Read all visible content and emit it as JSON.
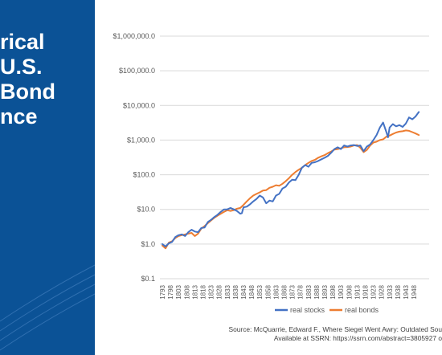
{
  "slide": {
    "title_lines": [
      "rical",
      "U.S.",
      "Bond",
      "nce"
    ],
    "source_line1": "Source: McQuarrie, Edward F., Where Siegel Went Awry: Outdated Sou",
    "source_line2": "Available at SSRN: https://ssrn.com/abstract=3805927 o"
  },
  "colors": {
    "panel": "#0b5296",
    "stocks": "#4472c4",
    "bonds": "#ed7d31",
    "grid": "#d9d9d9",
    "axis_text": "#595959"
  },
  "chart_data": {
    "type": "line",
    "title": "",
    "xlabel": "",
    "ylabel": "",
    "y_scale": "log",
    "ylim": [
      0.1,
      1000000
    ],
    "y_tick_values": [
      0.1,
      1,
      10,
      100,
      1000,
      10000,
      100000,
      1000000
    ],
    "y_tick_labels": [
      "$0.1",
      "$1.0",
      "$10.0",
      "$100.0",
      "$1,000.0",
      "$10,000.0",
      "$100,000.0",
      "$1,000,000.0"
    ],
    "x_range": [
      1793,
      1952
    ],
    "x_tick_labels": [
      "1793",
      "1798",
      "1803",
      "1808",
      "1813",
      "1818",
      "1823",
      "1828",
      "1833",
      "1838",
      "1843",
      "1848",
      "1853",
      "1858",
      "1863",
      "1868",
      "1873",
      "1878",
      "1883",
      "1888",
      "1893",
      "1898",
      "1903",
      "1908",
      "1913",
      "1918",
      "1923",
      "1928",
      "1933",
      "1938",
      "1943",
      "1948"
    ],
    "grid": true,
    "legend_position": "bottom",
    "series": [
      {
        "name": "real stocks",
        "x": [
          1793,
          1795,
          1797,
          1799,
          1801,
          1803,
          1805,
          1807,
          1809,
          1811,
          1813,
          1815,
          1817,
          1819,
          1821,
          1823,
          1825,
          1827,
          1829,
          1831,
          1833,
          1835,
          1837,
          1839,
          1841,
          1842,
          1843,
          1845,
          1847,
          1849,
          1851,
          1853,
          1855,
          1857,
          1859,
          1861,
          1863,
          1865,
          1867,
          1869,
          1871,
          1873,
          1875,
          1877,
          1879,
          1881,
          1883,
          1885,
          1887,
          1889,
          1891,
          1893,
          1895,
          1897,
          1899,
          1901,
          1903,
          1905,
          1907,
          1909,
          1911,
          1913,
          1915,
          1917,
          1919,
          1921,
          1923,
          1925,
          1927,
          1929,
          1931,
          1932,
          1933,
          1935,
          1937,
          1939,
          1941,
          1943,
          1945,
          1947,
          1949,
          1951
        ],
        "y": [
          1.0,
          0.85,
          1.05,
          1.15,
          1.6,
          1.8,
          1.9,
          1.7,
          2.2,
          2.6,
          2.3,
          2.2,
          2.9,
          3.0,
          4.3,
          5.0,
          6.0,
          7.0,
          8.5,
          10.0,
          10.0,
          11.0,
          10.0,
          9.0,
          7.5,
          7.8,
          11.5,
          12.0,
          14.0,
          17.0,
          20.0,
          25.0,
          22.0,
          15.0,
          18.0,
          17.0,
          25.0,
          28.0,
          40.0,
          45.0,
          60.0,
          72.0,
          70.0,
          100.0,
          160.0,
          190.0,
          170.0,
          220.0,
          230.0,
          250.0,
          280.0,
          310.0,
          350.0,
          430.0,
          550.0,
          620.0,
          550.0,
          700.0,
          650.0,
          700.0,
          720.0,
          680.0,
          700.0,
          480.0,
          650.0,
          750.0,
          1000.0,
          1400.0,
          2300.0,
          3200.0,
          1700.0,
          1200.0,
          2300.0,
          2900.0,
          2500.0,
          2700.0,
          2400.0,
          3000.0,
          4500.0,
          4000.0,
          4800.0,
          6500.0
        ]
      },
      {
        "name": "real bonds",
        "x": [
          1793,
          1795,
          1797,
          1799,
          1801,
          1803,
          1805,
          1807,
          1809,
          1811,
          1813,
          1815,
          1817,
          1819,
          1821,
          1823,
          1825,
          1827,
          1829,
          1831,
          1833,
          1835,
          1837,
          1839,
          1841,
          1843,
          1845,
          1847,
          1849,
          1851,
          1853,
          1855,
          1857,
          1859,
          1861,
          1863,
          1865,
          1867,
          1869,
          1871,
          1873,
          1875,
          1877,
          1879,
          1881,
          1883,
          1885,
          1887,
          1889,
          1891,
          1893,
          1895,
          1897,
          1899,
          1901,
          1903,
          1905,
          1907,
          1909,
          1911,
          1913,
          1915,
          1917,
          1919,
          1921,
          1923,
          1925,
          1927,
          1929,
          1931,
          1933,
          1935,
          1937,
          1939,
          1941,
          1943,
          1945,
          1947,
          1949,
          1951
        ],
        "y": [
          0.9,
          0.75,
          1.1,
          1.2,
          1.5,
          1.7,
          1.8,
          1.9,
          2.0,
          2.1,
          1.7,
          2.0,
          2.8,
          3.3,
          4.0,
          4.8,
          5.7,
          6.6,
          7.5,
          8.5,
          9.5,
          9.0,
          9.5,
          10.5,
          11.0,
          13.5,
          17.0,
          21.0,
          25.0,
          28.0,
          31.0,
          35.0,
          36.0,
          42.0,
          45.0,
          50.0,
          48.0,
          55.0,
          65.0,
          80.0,
          100.0,
          120.0,
          140.0,
          160.0,
          190.0,
          220.0,
          250.0,
          270.0,
          310.0,
          340.0,
          370.0,
          420.0,
          470.0,
          530.0,
          550.0,
          580.0,
          620.0,
          630.0,
          650.0,
          700.0,
          720.0,
          600.0,
          450.0,
          520.0,
          700.0,
          850.0,
          900.0,
          1000.0,
          1050.0,
          1250.0,
          1350.0,
          1500.0,
          1650.0,
          1750.0,
          1800.0,
          1900.0,
          1850.0,
          1700.0,
          1550.0,
          1400.0
        ]
      }
    ]
  }
}
